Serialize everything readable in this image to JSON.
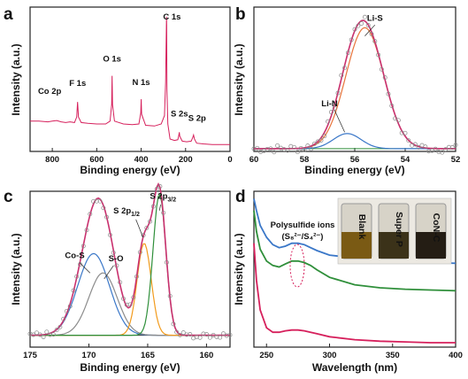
{
  "chart_data": [
    {
      "panel": "a",
      "type": "line",
      "xlabel": "Binding energy (eV)",
      "ylabel": "Intensity (a.u.)",
      "xlim": [
        900,
        0
      ],
      "x_reversed": true,
      "xticks": [
        800,
        600,
        400,
        200,
        0
      ],
      "color": "#d6205c",
      "annotations": [
        {
          "text": "Co 2p",
          "x": 780
        },
        {
          "text": "F 1s",
          "x": 686
        },
        {
          "text": "O 1s",
          "x": 531
        },
        {
          "text": "N 1s",
          "x": 400
        },
        {
          "text": "C 1s",
          "x": 285
        },
        {
          "text": "S 2s",
          "x": 228
        },
        {
          "text": "S 2p",
          "x": 164
        }
      ],
      "series": [
        {
          "x": [
            900,
            860,
            820,
            800,
            780,
            760,
            740,
            720,
            700,
            690,
            686,
            682,
            670,
            640,
            600,
            560,
            540,
            533,
            531,
            529,
            520,
            480,
            440,
            410,
            402,
            400,
            398,
            380,
            340,
            310,
            295,
            290,
            286,
            285,
            284,
            280,
            270,
            250,
            235,
            230,
            228,
            226,
            215,
            195,
            175,
            168,
            164,
            160,
            150,
            120,
            80,
            40,
            0
          ],
          "y": [
            0.22,
            0.22,
            0.215,
            0.22,
            0.225,
            0.215,
            0.21,
            0.215,
            0.21,
            0.25,
            0.36,
            0.25,
            0.21,
            0.205,
            0.2,
            0.2,
            0.22,
            0.34,
            0.55,
            0.34,
            0.22,
            0.2,
            0.195,
            0.2,
            0.28,
            0.38,
            0.27,
            0.19,
            0.185,
            0.2,
            0.26,
            0.5,
            0.98,
            0.92,
            0.45,
            0.2,
            0.09,
            0.08,
            0.085,
            0.12,
            0.14,
            0.11,
            0.075,
            0.07,
            0.075,
            0.1,
            0.12,
            0.09,
            0.06,
            0.055,
            0.05,
            0.05,
            0.05
          ]
        }
      ]
    },
    {
      "panel": "b",
      "type": "line",
      "xlabel": "Binding energy (eV)",
      "ylabel": "Intensity (a.u.)",
      "xlim": [
        60,
        52
      ],
      "x_reversed": true,
      "xticks": [
        60,
        58,
        56,
        54,
        52
      ],
      "annotations": [
        {
          "text": "Li-S",
          "x": 55.2,
          "y": 0.95
        },
        {
          "text": "Li-N",
          "x": 57.0,
          "y": 0.33
        }
      ],
      "components": [
        {
          "name": "Li-S",
          "center": 55.6,
          "sigma": 0.75,
          "amp": 0.88,
          "color": "#e8743b"
        },
        {
          "name": "Li-N",
          "center": 56.3,
          "sigma": 0.55,
          "amp": 0.11,
          "color": "#3a77c8"
        }
      ],
      "baseline": 0.02,
      "envelope_color": "#c9306e",
      "raw_color": "#888888",
      "bg_color": "#2f8f3a",
      "ylim": [
        0,
        1.05
      ]
    },
    {
      "panel": "c",
      "type": "line",
      "xlabel": "Binding energy (eV)",
      "ylabel": "Intensity (a.u.)",
      "xlim": [
        175,
        158
      ],
      "x_reversed": true,
      "xticks": [
        175,
        170,
        165,
        160
      ],
      "annotations": [
        {
          "text": "Co-S",
          "x": 171.2,
          "y": 0.6
        },
        {
          "text": "S-O",
          "x": 167.7,
          "y": 0.58
        },
        {
          "text": "S 2p",
          "sub": "1/2",
          "x": 166.8,
          "y": 0.9
        },
        {
          "text": "S 2p",
          "sub": "3/2",
          "x": 163.7,
          "y": 1.0
        }
      ],
      "components": [
        {
          "name": "Co-S",
          "center": 169.6,
          "sigma": 1.35,
          "amp": 0.55,
          "color": "#3a77c8"
        },
        {
          "name": "S-O",
          "center": 168.8,
          "sigma": 1.2,
          "amp": 0.42,
          "color": "#8c8c8c"
        },
        {
          "name": "S 2p1/2",
          "center": 165.3,
          "sigma": 0.6,
          "amp": 0.62,
          "color": "#f29b1d"
        },
        {
          "name": "S 2p3/2",
          "center": 164.0,
          "sigma": 0.55,
          "amp": 0.95,
          "color": "#2f8f3a"
        }
      ],
      "baseline": 0.08,
      "envelope_color": "#c9306e",
      "raw_color": "#888888",
      "bg_color": "#333333",
      "ylim": [
        0,
        1.05
      ]
    },
    {
      "panel": "d",
      "type": "line",
      "xlabel": "Wavelength (nm)",
      "ylabel": "Intensity (a.u.)",
      "xlim": [
        240,
        400
      ],
      "xticks": [
        250,
        300,
        350,
        400
      ],
      "annotations": [
        {
          "text": "Polysulfide ions"
        },
        {
          "text": "(S₈²⁻/S₄²⁻)"
        }
      ],
      "inset_labels": [
        "Blank",
        "Super P",
        "CoN-C"
      ],
      "inset_label_colors": [
        "#3a77c8",
        "#2f8f3a",
        "#d6205c"
      ],
      "series": [
        {
          "color": "#3a77c8",
          "x": [
            240,
            242,
            245,
            250,
            255,
            260,
            265,
            270,
            275,
            280,
            285,
            290,
            300,
            320,
            340,
            360,
            380,
            400
          ],
          "y": [
            1.0,
            0.92,
            0.82,
            0.74,
            0.69,
            0.67,
            0.68,
            0.7,
            0.7,
            0.69,
            0.67,
            0.65,
            0.62,
            0.6,
            0.585,
            0.575,
            0.57,
            0.565
          ]
        },
        {
          "color": "#2f8f3a",
          "x": [
            240,
            242,
            245,
            250,
            255,
            260,
            265,
            270,
            275,
            280,
            285,
            290,
            300,
            320,
            340,
            360,
            380,
            400
          ],
          "y": [
            0.92,
            0.78,
            0.66,
            0.58,
            0.55,
            0.54,
            0.56,
            0.58,
            0.58,
            0.57,
            0.55,
            0.52,
            0.47,
            0.42,
            0.4,
            0.39,
            0.385,
            0.38
          ]
        },
        {
          "color": "#d6205c",
          "x": [
            240,
            242,
            245,
            250,
            255,
            260,
            265,
            270,
            275,
            280,
            285,
            290,
            300,
            320,
            340,
            360,
            380,
            400
          ],
          "y": [
            0.7,
            0.45,
            0.25,
            0.13,
            0.1,
            0.1,
            0.11,
            0.115,
            0.115,
            0.11,
            0.1,
            0.09,
            0.07,
            0.05,
            0.04,
            0.035,
            0.03,
            0.03
          ]
        }
      ],
      "ylim": [
        0,
        1.05
      ]
    }
  ]
}
